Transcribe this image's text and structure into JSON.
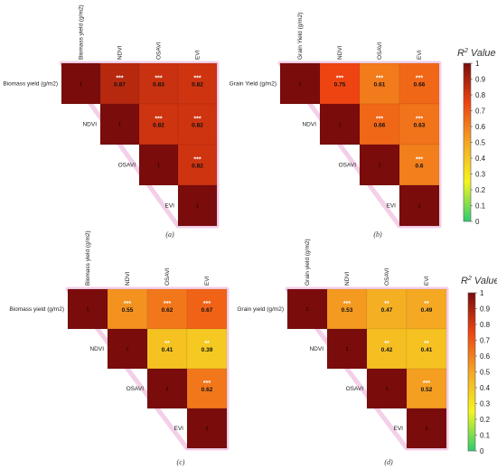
{
  "chart_data": [
    {
      "type": "heatmap",
      "caption": "(a)",
      "labels": [
        "Biomass yield (g/m2)",
        "NDVI",
        "OSAVI",
        "EVI"
      ],
      "cells": [
        {
          "row": 0,
          "col": 0,
          "value": 1,
          "text": "1",
          "sig": ""
        },
        {
          "row": 0,
          "col": 1,
          "value": 0.87,
          "text": "0.87",
          "sig": "***"
        },
        {
          "row": 0,
          "col": 2,
          "value": 0.83,
          "text": "0.83",
          "sig": "***"
        },
        {
          "row": 0,
          "col": 3,
          "value": 0.82,
          "text": "0.82",
          "sig": "***"
        },
        {
          "row": 1,
          "col": 1,
          "value": 1,
          "text": "1",
          "sig": ""
        },
        {
          "row": 1,
          "col": 2,
          "value": 0.82,
          "text": "0.82",
          "sig": "***"
        },
        {
          "row": 1,
          "col": 3,
          "value": 0.82,
          "text": "0.82",
          "sig": "***"
        },
        {
          "row": 2,
          "col": 2,
          "value": 1,
          "text": "1",
          "sig": ""
        },
        {
          "row": 2,
          "col": 3,
          "value": 0.82,
          "text": "0.82",
          "sig": "***"
        },
        {
          "row": 3,
          "col": 3,
          "value": 1,
          "text": "1",
          "sig": ""
        }
      ]
    },
    {
      "type": "heatmap",
      "caption": "(b)",
      "labels": [
        "Grain Yield (g/m2)",
        "NDVI",
        "OSAVI",
        "EVI"
      ],
      "cells": [
        {
          "row": 0,
          "col": 0,
          "value": 1,
          "text": "1",
          "sig": ""
        },
        {
          "row": 0,
          "col": 1,
          "value": 0.75,
          "text": "0.75",
          "sig": "***"
        },
        {
          "row": 0,
          "col": 2,
          "value": 0.61,
          "text": "0.61",
          "sig": "***"
        },
        {
          "row": 0,
          "col": 3,
          "value": 0.66,
          "text": "0.66",
          "sig": "***"
        },
        {
          "row": 1,
          "col": 1,
          "value": 1,
          "text": "1",
          "sig": ""
        },
        {
          "row": 1,
          "col": 2,
          "value": 0.66,
          "text": "0.66",
          "sig": "***"
        },
        {
          "row": 1,
          "col": 3,
          "value": 0.63,
          "text": "0.63",
          "sig": "***"
        },
        {
          "row": 2,
          "col": 2,
          "value": 1,
          "text": "1",
          "sig": ""
        },
        {
          "row": 2,
          "col": 3,
          "value": 0.6,
          "text": "0.6",
          "sig": "***"
        },
        {
          "row": 3,
          "col": 3,
          "value": 1,
          "text": "1",
          "sig": ""
        }
      ]
    },
    {
      "type": "heatmap",
      "caption": "(c)",
      "labels": [
        "Biomass yield (g/m2)",
        "NDVI",
        "OSAVI",
        "EVI"
      ],
      "cells": [
        {
          "row": 0,
          "col": 0,
          "value": 1,
          "text": "1",
          "sig": ""
        },
        {
          "row": 0,
          "col": 1,
          "value": 0.55,
          "text": "0.55",
          "sig": "***"
        },
        {
          "row": 0,
          "col": 2,
          "value": 0.62,
          "text": "0.62",
          "sig": "***"
        },
        {
          "row": 0,
          "col": 3,
          "value": 0.67,
          "text": "0.67",
          "sig": "***"
        },
        {
          "row": 1,
          "col": 1,
          "value": 1,
          "text": "1",
          "sig": ""
        },
        {
          "row": 1,
          "col": 2,
          "value": 0.41,
          "text": "0.41",
          "sig": "**"
        },
        {
          "row": 1,
          "col": 3,
          "value": 0.39,
          "text": "0.39",
          "sig": "**"
        },
        {
          "row": 2,
          "col": 2,
          "value": 1,
          "text": "1",
          "sig": ""
        },
        {
          "row": 2,
          "col": 3,
          "value": 0.62,
          "text": "0.62",
          "sig": "***"
        },
        {
          "row": 3,
          "col": 3,
          "value": 1,
          "text": "1",
          "sig": ""
        }
      ]
    },
    {
      "type": "heatmap",
      "caption": "(d)",
      "labels": [
        "Grain yield (g/m2)",
        "NDVI",
        "OSAVI",
        "EVI"
      ],
      "cells": [
        {
          "row": 0,
          "col": 0,
          "value": 1,
          "text": "1",
          "sig": ""
        },
        {
          "row": 0,
          "col": 1,
          "value": 0.53,
          "text": "0.53",
          "sig": "***"
        },
        {
          "row": 0,
          "col": 2,
          "value": 0.47,
          "text": "0.47",
          "sig": "**"
        },
        {
          "row": 0,
          "col": 3,
          "value": 0.49,
          "text": "0.49",
          "sig": "**"
        },
        {
          "row": 1,
          "col": 1,
          "value": 1,
          "text": "1",
          "sig": ""
        },
        {
          "row": 1,
          "col": 2,
          "value": 0.42,
          "text": "0.42",
          "sig": "**"
        },
        {
          "row": 1,
          "col": 3,
          "value": 0.41,
          "text": "0.41",
          "sig": "**"
        },
        {
          "row": 2,
          "col": 2,
          "value": 1,
          "text": "1",
          "sig": ""
        },
        {
          "row": 2,
          "col": 3,
          "value": 0.52,
          "text": "0.52",
          "sig": "***"
        },
        {
          "row": 3,
          "col": 3,
          "value": 1,
          "text": "1",
          "sig": ""
        }
      ]
    }
  ],
  "colorbar": {
    "title_base": "R",
    "title_sup": "2",
    "title_rest": " Value",
    "range": [
      0,
      1
    ],
    "ticks": [
      "1",
      "0.9",
      "0.8",
      "0.7",
      "0.6",
      "0.5",
      "0.4",
      "0.3",
      "0.2",
      "0.1",
      "0"
    ],
    "stops": [
      "#2ecc71",
      "#f5f51f",
      "#f5a623",
      "#ee4412",
      "#7a0c0c"
    ]
  }
}
